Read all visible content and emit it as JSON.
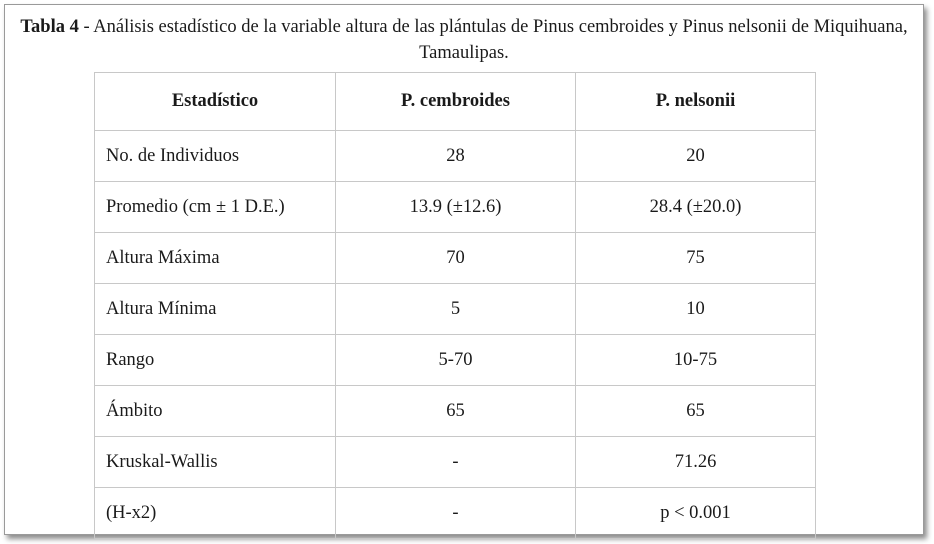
{
  "caption": {
    "label": "Tabla 4",
    "text": " - Análisis estadístico de la variable altura de las plántulas de Pinus cembroides y Pinus nelsonii de Miquihuana, Tamaulipas."
  },
  "table": {
    "headers": [
      "Estadístico",
      "P. cembroides",
      "P. nelsonii"
    ],
    "rows": [
      [
        "No. de Individuos",
        "28",
        "20"
      ],
      [
        "Promedio (cm ± 1 D.E.)",
        "13.9 (±12.6)",
        "28.4 (±20.0)"
      ],
      [
        "Altura Máxima",
        "70",
        "75"
      ],
      [
        "Altura Mínima",
        "5",
        "10"
      ],
      [
        "Rango",
        "5-70",
        "10-75"
      ],
      [
        "Ámbito",
        "65",
        "65"
      ],
      [
        "Kruskal-Wallis",
        "-",
        "71.26"
      ],
      [
        "(H-x2)",
        "-",
        "p < 0.001"
      ]
    ]
  }
}
